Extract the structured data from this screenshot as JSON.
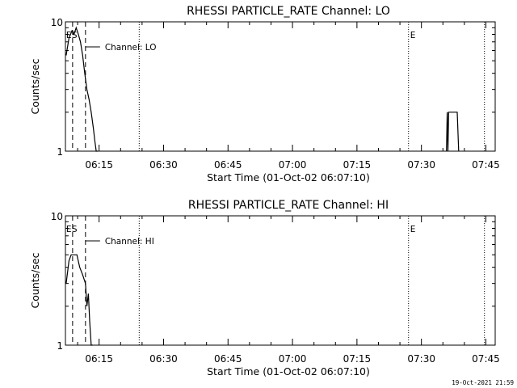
{
  "timestamp": "19-Oct-2021 21:59",
  "chart_data": [
    {
      "type": "line",
      "title": "RHESSI PARTICLE_RATE Channel: LO",
      "xlabel": "Start Time (01-Oct-02 06:07:10)",
      "ylabel": "Counts/sec",
      "y_scale": "log",
      "ylim": [
        1,
        10
      ],
      "y_ticks": [
        {
          "value": 1,
          "label": "1"
        },
        {
          "value": 10,
          "label": "10"
        }
      ],
      "xlim": [
        "06:07:10",
        "07:47:10"
      ],
      "x_ticks": [
        "06:15",
        "06:30",
        "06:45",
        "07:00",
        "07:15",
        "07:30",
        "07:45"
      ],
      "series": [
        {
          "name": "Channel: LO",
          "x": [
            "06:07:20",
            "06:08:00",
            "06:08:40",
            "06:09:10",
            "06:09:40",
            "06:10:10",
            "06:10:40",
            "06:11:10",
            "06:11:40",
            "06:12:10",
            "06:12:40",
            "06:13:10",
            "06:13:40",
            "06:14:00",
            "06:14:20",
            "06:14:40",
            "07:35:50",
            "07:36:00",
            "07:36:10",
            "07:36:20",
            "07:36:30",
            "07:37:00",
            "07:38:20",
            "07:38:40"
          ],
          "y": [
            5.5,
            7.5,
            8.5,
            8.0,
            9.0,
            8.0,
            7.0,
            5.5,
            4.0,
            3.0,
            2.5,
            2.0,
            1.5,
            1.2,
            1.0,
            1.0,
            1.0,
            2.0,
            1.0,
            2.0,
            2.0,
            2.0,
            2.0,
            1.0
          ]
        }
      ],
      "annotations": [
        {
          "text": "S",
          "x": "06:08:50",
          "kind": "start"
        },
        {
          "text": "E",
          "x": "07:27:00",
          "kind": "end"
        }
      ],
      "series_label": "Channel: LO"
    },
    {
      "type": "line",
      "title": "RHESSI PARTICLE_RATE Channel: HI",
      "xlabel": "Start Time (01-Oct-02 06:07:10)",
      "ylabel": "Counts/sec",
      "y_scale": "log",
      "ylim": [
        1,
        10
      ],
      "y_ticks": [
        {
          "value": 1,
          "label": "1"
        },
        {
          "value": 10,
          "label": "10"
        }
      ],
      "xlim": [
        "06:07:10",
        "07:47:10"
      ],
      "x_ticks": [
        "06:15",
        "06:30",
        "06:45",
        "07:00",
        "07:15",
        "07:30",
        "07:45"
      ],
      "series": [
        {
          "name": "Channel: HI",
          "x": [
            "06:07:20",
            "06:08:00",
            "06:08:30",
            "06:09:10",
            "06:09:50",
            "06:10:30",
            "06:11:10",
            "06:11:50",
            "06:12:10",
            "06:12:30",
            "06:12:50",
            "06:13:10",
            "06:13:30"
          ],
          "y": [
            3.0,
            4.5,
            5.0,
            5.0,
            5.0,
            4.0,
            3.5,
            3.0,
            2.0,
            2.5,
            1.5,
            1.0,
            1.0
          ]
        }
      ],
      "annotations": [
        {
          "text": "S",
          "x": "06:08:50",
          "kind": "start"
        },
        {
          "text": "E",
          "x": "07:27:00",
          "kind": "end"
        }
      ],
      "series_label": "Channel: HI"
    }
  ]
}
